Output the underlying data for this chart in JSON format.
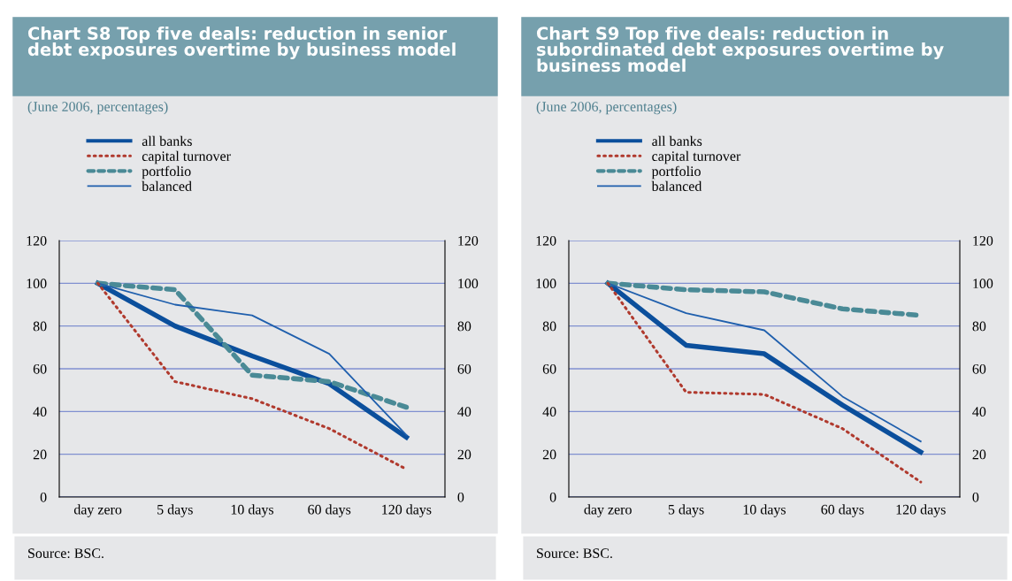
{
  "chart_data": [
    {
      "type": "line",
      "title": "Chart S8 Top five deals: reduction in senior\ndebt exposures overtime by business model",
      "subtitle": "(June 2006, percentages)",
      "categories": [
        "day zero",
        "5 days",
        "10 days",
        "60 days",
        "120 days"
      ],
      "series": [
        {
          "name": "all banks",
          "color": "#0b4f9c",
          "line_style": "solid",
          "values": [
            100,
            80,
            66,
            53,
            28
          ]
        },
        {
          "name": "capital turnover",
          "color": "#b03a2e",
          "line_style": "dotted",
          "values": [
            100,
            54,
            46,
            32,
            13
          ]
        },
        {
          "name": "portfolio",
          "color": "#4a8a96",
          "line_style": "dashed",
          "values": [
            100,
            97,
            57,
            54,
            42
          ]
        },
        {
          "name": "balanced",
          "color": "#1f5fad",
          "line_style": "solid",
          "values": [
            100,
            90,
            85,
            67,
            29
          ]
        }
      ],
      "ylim": [
        0,
        120
      ],
      "yticks": [
        0,
        20,
        40,
        60,
        80,
        100,
        120
      ],
      "y2lim": [
        0,
        120
      ],
      "y2ticks": [
        0,
        20,
        40,
        60,
        80,
        100,
        120
      ],
      "grid": true,
      "legend": "top left",
      "marker": "none",
      "annotations": [
        "Source: BSC."
      ]
    },
    {
      "type": "line",
      "title": "Chart S9 Top five deals: reduction in\nsubordinated debt exposures overtime by\nbusiness model",
      "subtitle": "(June 2006, percentages)",
      "categories": [
        "day zero",
        "5 days",
        "10 days",
        "60 days",
        "120 days"
      ],
      "series": [
        {
          "name": "all banks",
          "color": "#0b4f9c",
          "line_style": "solid",
          "values": [
            100,
            71,
            67,
            43,
            21
          ]
        },
        {
          "name": "capital turnover",
          "color": "#b03a2e",
          "line_style": "dotted",
          "values": [
            100,
            49,
            48,
            32,
            7
          ]
        },
        {
          "name": "portfolio",
          "color": "#4a8a96",
          "line_style": "dashed",
          "values": [
            100,
            97,
            96,
            88,
            85
          ]
        },
        {
          "name": "balanced",
          "color": "#1f5fad",
          "line_style": "solid",
          "values": [
            100,
            86,
            78,
            47,
            26
          ]
        }
      ],
      "ylim": [
        0,
        120
      ],
      "yticks": [
        0,
        20,
        40,
        60,
        80,
        100,
        120
      ],
      "y2lim": [
        0,
        120
      ],
      "y2ticks": [
        0,
        20,
        40,
        60,
        80,
        100,
        120
      ],
      "grid": true,
      "legend": "top left",
      "marker": "none",
      "annotations": [
        "Source: BSC."
      ]
    }
  ]
}
